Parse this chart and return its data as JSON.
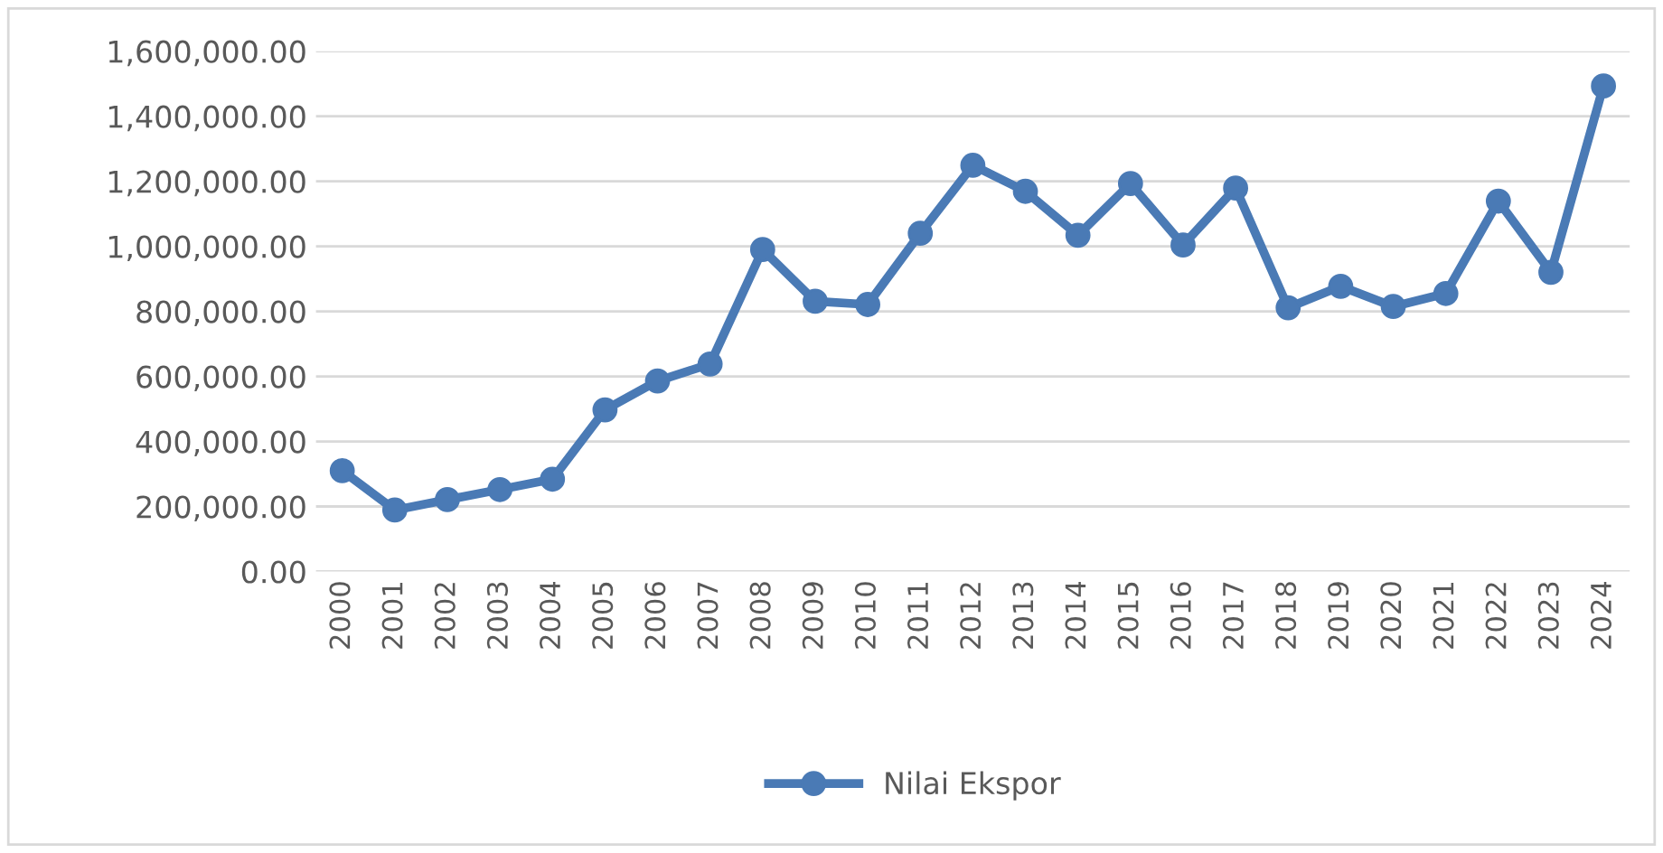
{
  "chart_data": {
    "type": "line",
    "categories": [
      "2000",
      "2001",
      "2002",
      "2003",
      "2004",
      "2005",
      "2006",
      "2007",
      "2008",
      "2009",
      "2010",
      "2011",
      "2012",
      "2013",
      "2014",
      "2015",
      "2016",
      "2017",
      "2018",
      "2019",
      "2020",
      "2021",
      "2022",
      "2023",
      "2024"
    ],
    "series": [
      {
        "name": "Nilai Ekspor",
        "color": "#4a7ab5",
        "values": [
          310000,
          189000,
          221000,
          252000,
          284000,
          497000,
          586000,
          638000,
          990000,
          831000,
          821000,
          1040000,
          1249000,
          1169000,
          1034000,
          1193000,
          1004000,
          1179000,
          811000,
          877000,
          815000,
          855000,
          1139000,
          920000,
          1493000
        ]
      }
    ],
    "ylim": [
      0,
      1600000
    ],
    "yticks": [
      {
        "value": 0,
        "label": "0.00"
      },
      {
        "value": 200000,
        "label": "200,000.00"
      },
      {
        "value": 400000,
        "label": "400,000.00"
      },
      {
        "value": 600000,
        "label": "600,000.00"
      },
      {
        "value": 800000,
        "label": "800,000.00"
      },
      {
        "value": 1000000,
        "label": "1,000,000.00"
      },
      {
        "value": 1200000,
        "label": "1,200,000.00"
      },
      {
        "value": 1400000,
        "label": "1,400,000.00"
      },
      {
        "value": 1600000,
        "label": "1,600,000.00"
      }
    ],
    "grid": "y",
    "legend": "bottom",
    "marker": "circle",
    "line_style": "solid"
  }
}
